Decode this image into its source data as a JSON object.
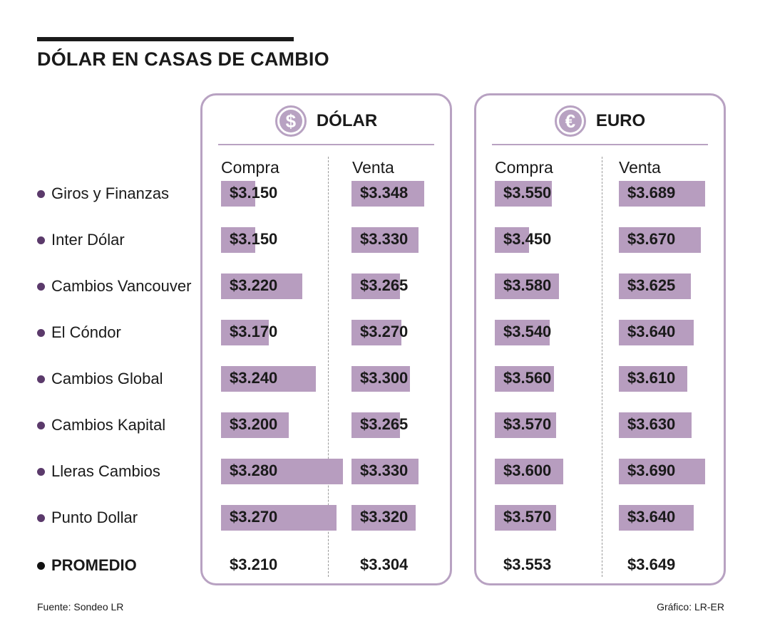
{
  "title": "DÓLAR EN CASAS DE CAMBIO",
  "source": "Fuente: Sondeo LR",
  "credit": "Gráfico: LR-ER",
  "colors": {
    "bar": "#b79dbf",
    "frame": "#b8a2c2",
    "dot": "#5b3a6b"
  },
  "panels": {
    "dolar": {
      "title": "DÓLAR",
      "icon": "dollar-sign-icon",
      "symbol": "$",
      "buy_label": "Compra",
      "sell_label": "Venta"
    },
    "euro": {
      "title": "EURO",
      "icon": "euro-sign-icon",
      "symbol": "€",
      "buy_label": "Compra",
      "sell_label": "Venta"
    }
  },
  "chart_data": {
    "type": "table",
    "categories": [
      "Giros y Finanzas",
      "Inter Dólar",
      "Cambios Vancouver",
      "El Cóndor",
      "Cambios Global",
      "Cambios Kapital",
      "Lleras Cambios",
      "Punto Dollar"
    ],
    "series": [
      {
        "currency": "DÓLAR",
        "side": "Compra",
        "values": [
          3150,
          3150,
          3220,
          3170,
          3240,
          3200,
          3280,
          3270
        ],
        "labels": [
          "$3.150",
          "$3.150",
          "$3.220",
          "$3.170",
          "$3.240",
          "$3.200",
          "$3.280",
          "$3.270"
        ]
      },
      {
        "currency": "DÓLAR",
        "side": "Venta",
        "values": [
          3348,
          3330,
          3265,
          3270,
          3300,
          3265,
          3330,
          3320
        ],
        "labels": [
          "$3.348",
          "$3.330",
          "$3.265",
          "$3.270",
          "$3.300",
          "$3.265",
          "$3.330",
          "$3.320"
        ]
      },
      {
        "currency": "EURO",
        "side": "Compra",
        "values": [
          3550,
          3450,
          3580,
          3540,
          3560,
          3570,
          3600,
          3570
        ],
        "labels": [
          "$3.550",
          "$3.450",
          "$3.580",
          "$3.540",
          "$3.560",
          "$3.570",
          "$3.600",
          "$3.570"
        ]
      },
      {
        "currency": "EURO",
        "side": "Venta",
        "values": [
          3689,
          3670,
          3625,
          3640,
          3610,
          3630,
          3690,
          3640
        ],
        "labels": [
          "$3.689",
          "$3.670",
          "$3.625",
          "$3.640",
          "$3.610",
          "$3.630",
          "$3.690",
          "$3.640"
        ]
      }
    ],
    "average": {
      "label": "PROMEDIO",
      "labels": [
        "$3.210",
        "$3.304",
        "$3.553",
        "$3.649"
      ]
    }
  }
}
